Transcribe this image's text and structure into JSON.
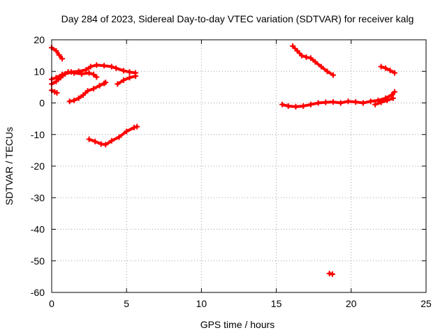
{
  "chart_data": {
    "type": "scatter",
    "title": "Day 284 of 2023, Sidereal Day-to-day VTEC variation (SDTVAR) for receiver kalg",
    "xlabel": "GPS time / hours",
    "ylabel": "SDTVAR / TECUs",
    "xlim": [
      0,
      25
    ],
    "ylim": [
      -60,
      20
    ],
    "x_ticks": [
      0,
      5,
      10,
      15,
      20,
      25
    ],
    "y_ticks": [
      -60,
      -50,
      -40,
      -30,
      -20,
      -10,
      0,
      10,
      20
    ],
    "grid": true,
    "legend": "none",
    "marker_color": "#ff0000",
    "series": [
      {
        "points": [
          [
            0.0,
            17.5
          ],
          [
            0.3,
            16.5
          ],
          [
            0.5,
            15.2
          ],
          [
            0.7,
            14.0
          ]
        ]
      },
      {
        "points": [
          [
            0.0,
            4.0
          ],
          [
            0.2,
            3.5
          ],
          [
            0.35,
            3.2
          ]
        ]
      },
      {
        "points": [
          [
            0.0,
            6.0
          ],
          [
            0.3,
            6.8
          ],
          [
            0.6,
            8.0
          ],
          [
            0.9,
            9.2
          ],
          [
            1.3,
            9.8
          ],
          [
            1.8,
            10.0
          ],
          [
            2.3,
            10.5
          ],
          [
            2.6,
            11.5
          ],
          [
            3.0,
            12.0
          ],
          [
            3.5,
            11.8
          ],
          [
            4.0,
            11.5
          ],
          [
            4.3,
            11.0
          ],
          [
            4.8,
            10.2
          ],
          [
            5.2,
            9.8
          ],
          [
            5.6,
            9.5
          ]
        ]
      },
      {
        "points": [
          [
            0.0,
            7.5
          ],
          [
            0.3,
            8.0
          ],
          [
            0.7,
            9.0
          ],
          [
            1.1,
            9.8
          ],
          [
            1.5,
            9.5
          ],
          [
            2.0,
            9.2
          ],
          [
            2.5,
            9.5
          ],
          [
            2.8,
            9.0
          ],
          [
            3.0,
            8.2
          ]
        ]
      },
      {
        "points": [
          [
            1.2,
            0.5
          ],
          [
            1.5,
            0.8
          ],
          [
            1.8,
            1.5
          ],
          [
            2.1,
            2.5
          ],
          [
            2.4,
            3.8
          ],
          [
            2.8,
            4.5
          ],
          [
            3.2,
            5.5
          ],
          [
            3.5,
            6.2
          ],
          [
            3.6,
            6.5
          ]
        ]
      },
      {
        "points": [
          [
            4.4,
            6.0
          ],
          [
            4.8,
            7.2
          ],
          [
            5.2,
            8.0
          ],
          [
            5.6,
            8.5
          ]
        ]
      },
      {
        "points": [
          [
            2.5,
            -11.5
          ],
          [
            2.9,
            -12.2
          ],
          [
            3.3,
            -13.0
          ],
          [
            3.6,
            -13.2
          ],
          [
            4.0,
            -12.0
          ],
          [
            4.5,
            -10.8
          ],
          [
            5.0,
            -9.0
          ],
          [
            5.5,
            -7.8
          ],
          [
            5.7,
            -7.5
          ]
        ]
      },
      {
        "points": [
          [
            16.1,
            18.0
          ],
          [
            16.4,
            16.5
          ],
          [
            16.7,
            15.0
          ],
          [
            17.0,
            14.5
          ],
          [
            17.3,
            14.2
          ],
          [
            17.6,
            13.0
          ],
          [
            18.0,
            11.5
          ],
          [
            18.4,
            10.0
          ],
          [
            18.8,
            8.8
          ]
        ]
      },
      {
        "points": [
          [
            15.4,
            -0.5
          ],
          [
            15.8,
            -1.0
          ],
          [
            16.3,
            -1.2
          ],
          [
            16.8,
            -1.0
          ],
          [
            17.3,
            -0.5
          ],
          [
            17.8,
            0.0
          ],
          [
            18.3,
            0.2
          ],
          [
            18.8,
            0.3
          ],
          [
            19.3,
            0.0
          ],
          [
            19.8,
            0.5
          ],
          [
            20.3,
            0.3
          ],
          [
            20.8,
            0.0
          ],
          [
            21.3,
            0.5
          ],
          [
            21.8,
            0.8
          ],
          [
            22.3,
            1.5
          ],
          [
            22.7,
            2.5
          ],
          [
            22.9,
            3.5
          ]
        ]
      },
      {
        "points": [
          [
            21.6,
            -0.5
          ],
          [
            22.0,
            0.2
          ],
          [
            22.4,
            0.8
          ],
          [
            22.8,
            1.5
          ]
        ]
      },
      {
        "points": [
          [
            22.0,
            11.5
          ],
          [
            22.3,
            11.0
          ],
          [
            22.6,
            10.3
          ],
          [
            22.9,
            9.5
          ]
        ]
      },
      {
        "points": [
          [
            18.55,
            -54.0
          ],
          [
            18.75,
            -54.2
          ]
        ]
      }
    ]
  }
}
